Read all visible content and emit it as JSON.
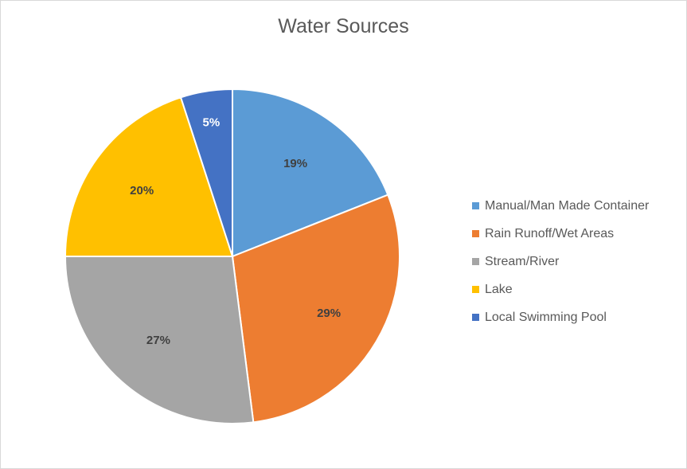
{
  "chart_data": {
    "type": "pie",
    "title": "Water Sources",
    "categories": [
      "Manual/Man Made Container",
      "Rain Runoff/Wet Areas",
      "Stream/River",
      "Lake",
      "Local Swimming Pool"
    ],
    "values": [
      19,
      29,
      27,
      20,
      5
    ],
    "labels": [
      "19%",
      "29%",
      "27%",
      "20%",
      "5%"
    ],
    "colors": [
      "#5B9BD5",
      "#ED7D31",
      "#A5A5A5",
      "#FFC000",
      "#4472C4"
    ],
    "legend_position": "right",
    "start_angle_deg": 0,
    "direction": "clockwise"
  }
}
